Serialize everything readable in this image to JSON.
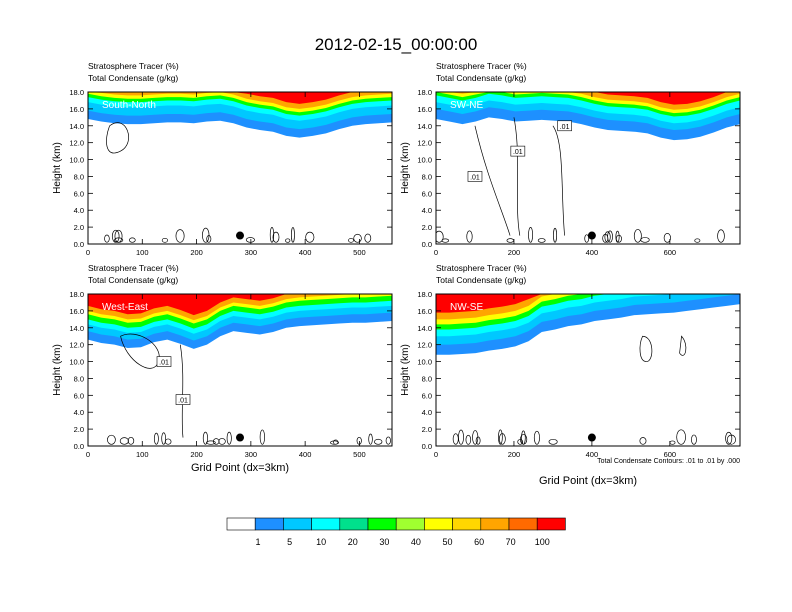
{
  "title": "2012-02-15_00:00:00",
  "panel_titles": {
    "line1": "Stratosphere Tracer   (%)",
    "line2": "Total Condensate   (g/kg)"
  },
  "ylabel": "Height (km)",
  "xlabel": "Grid Point (dx=3km)",
  "contour_note": "Total Condensate Contours: .01 to .01 by .000",
  "colors": [
    "#ffffff",
    "#1e90ff",
    "#00c8ff",
    "#00ffff",
    "#00e08c",
    "#00ff00",
    "#a0ff30",
    "#ffff00",
    "#ffd700",
    "#ffa500",
    "#ff6a00",
    "#ff0000"
  ],
  "colorbar_labels": [
    "1",
    "5",
    "10",
    "20",
    "30",
    "40",
    "50",
    "60",
    "70",
    "100"
  ],
  "chart_data": [
    {
      "type": "heatmap",
      "panel": "South-North",
      "label": "South-North",
      "xlim": [
        0,
        560
      ],
      "ylim": [
        0,
        18
      ],
      "xticks": [
        0,
        100,
        200,
        300,
        400,
        500
      ],
      "yticks": [
        0,
        2,
        4,
        6,
        8,
        10,
        12,
        14,
        16,
        18
      ],
      "ytick_labels": [
        "0.0",
        "2.0",
        "4.0",
        "6.0",
        "8.0",
        "10.0",
        "12.0",
        "14.0",
        "16.0",
        "18.0"
      ],
      "tracer_bottom_km": [
        14.8,
        14.5,
        14.3,
        14.2,
        14.2,
        14.3,
        14.4,
        14.4,
        14.3,
        14.5,
        14.6,
        14.3,
        13.8,
        13.5,
        13.3,
        12.8,
        12.6,
        12.8,
        13.1,
        13.6,
        14.0,
        14.2,
        14.3,
        14.4
      ],
      "band_thickness_km": [
        1.0,
        2.0,
        2.6,
        3.0,
        3.4,
        4.0
      ],
      "contour_labels": [],
      "dot": [
        280,
        1.0
      ]
    },
    {
      "type": "heatmap",
      "panel": "SW-NE",
      "label": "SW-NE",
      "xlim": [
        0,
        780
      ],
      "ylim": [
        0,
        18
      ],
      "xticks": [
        0,
        200,
        400,
        600
      ],
      "yticks": [
        0,
        2,
        4,
        6,
        8,
        10,
        12,
        14,
        16,
        18
      ],
      "ytick_labels": [
        "0.0",
        "2.0",
        "4.0",
        "6.0",
        "8.0",
        "10.0",
        "12.0",
        "14.0",
        "16.0",
        "18.0"
      ],
      "tracer_bottom_km": [
        14.8,
        14.5,
        14.2,
        14.5,
        15.0,
        14.8,
        14.5,
        14.6,
        14.7,
        14.6,
        14.5,
        14.2,
        13.8,
        13.5,
        13.4,
        13.3,
        13.1,
        12.6,
        12.3,
        12.4,
        12.7,
        13.2,
        13.8,
        14.2
      ],
      "band_thickness_km": [
        1.2,
        2.0,
        2.8,
        3.2,
        3.6,
        4.2
      ],
      "contour_labels": [
        ".01",
        ".01",
        ".01"
      ],
      "dot": [
        400,
        1.0
      ]
    },
    {
      "type": "heatmap",
      "panel": "West-East",
      "label": "West-East",
      "xlim": [
        0,
        560
      ],
      "ylim": [
        0,
        18
      ],
      "xticks": [
        0,
        100,
        200,
        300,
        400,
        500
      ],
      "yticks": [
        0,
        2,
        4,
        6,
        8,
        10,
        12,
        14,
        16,
        18
      ],
      "ytick_labels": [
        "0.0",
        "2.0",
        "4.0",
        "6.0",
        "8.0",
        "10.0",
        "12.0",
        "14.0",
        "16.0",
        "18.0"
      ],
      "tracer_bottom_km": [
        12.6,
        12.2,
        12.0,
        11.6,
        11.7,
        12.3,
        12.6,
        12.1,
        11.5,
        12.0,
        13.0,
        13.6,
        13.4,
        13.2,
        13.5,
        14.0,
        14.2,
        14.3,
        14.4,
        14.5,
        14.6,
        14.6,
        14.7,
        14.8
      ],
      "band_thickness_km": [
        1.0,
        1.8,
        2.4,
        3.0,
        3.4,
        4.0
      ],
      "contour_labels": [
        ".01",
        ".01"
      ],
      "dot": [
        280,
        1.0
      ]
    },
    {
      "type": "heatmap",
      "panel": "NW-SE",
      "label": "NW-SE",
      "xlim": [
        0,
        780
      ],
      "ylim": [
        0,
        18
      ],
      "xticks": [
        0,
        200,
        400,
        600
      ],
      "yticks": [
        0,
        2,
        4,
        6,
        8,
        10,
        12,
        14,
        16,
        18
      ],
      "ytick_labels": [
        "0.0",
        "2.0",
        "4.0",
        "6.0",
        "8.0",
        "10.0",
        "12.0",
        "14.0",
        "16.0",
        "18.0"
      ],
      "tracer_bottom_km": [
        10.8,
        10.8,
        10.9,
        11.0,
        11.3,
        11.5,
        11.8,
        12.4,
        13.5,
        13.8,
        14.2,
        14.4,
        14.8,
        15.0,
        15.2,
        15.5,
        15.6,
        15.7,
        15.8,
        16.0,
        16.2,
        16.4,
        16.6,
        16.8
      ],
      "band_thickness_km": [
        1.2,
        2.2,
        3.0,
        3.6,
        4.2,
        5.0
      ],
      "contour_labels": [],
      "dot": [
        400,
        1.0
      ]
    }
  ]
}
